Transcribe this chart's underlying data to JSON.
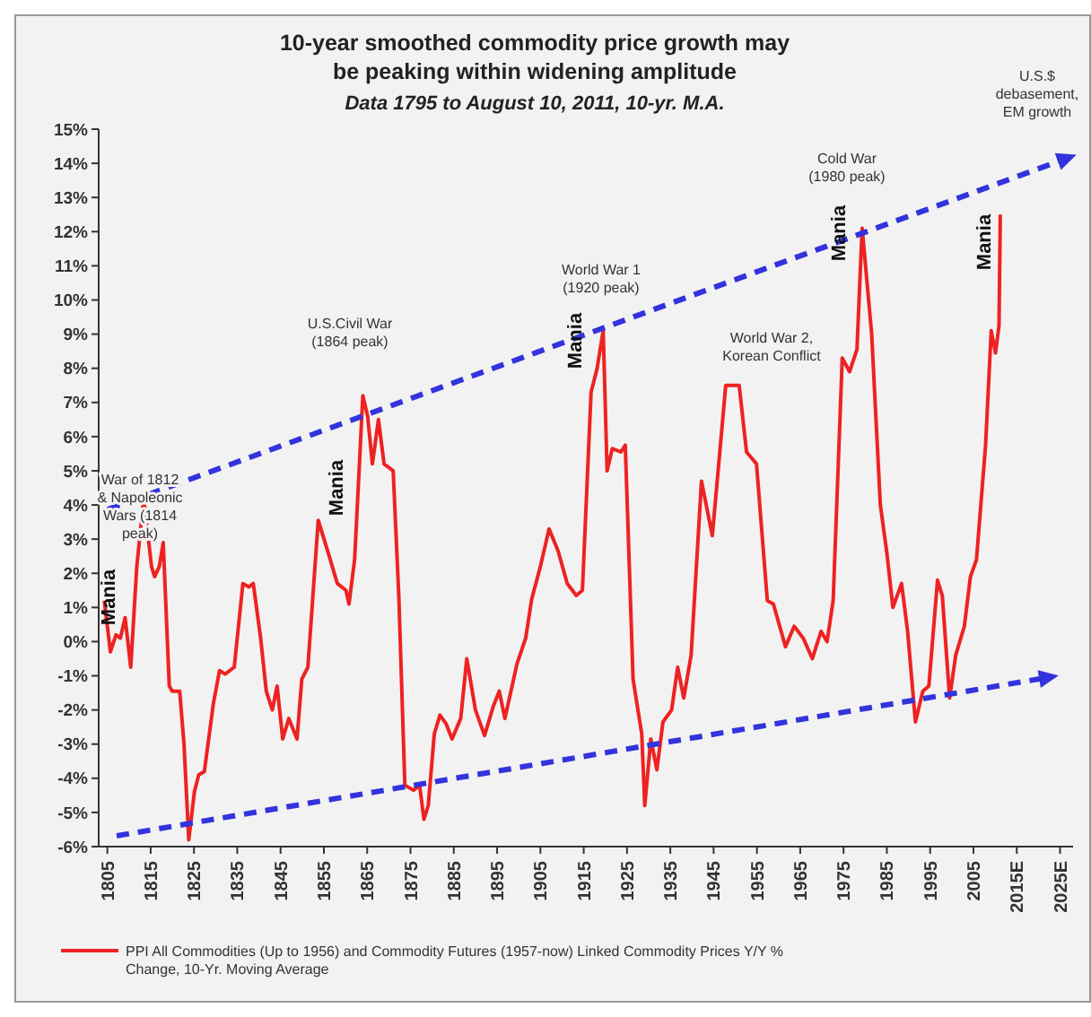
{
  "chart_data": {
    "type": "line",
    "title": "10-year smoothed commodity price growth may be peaking within widening amplitude",
    "subtitle": "Data 1795 to August 10, 2011, 10-yr. M.A.",
    "xlim": [
      1803,
      2028
    ],
    "ylim": [
      -6,
      15
    ],
    "xticks": [
      1805,
      1815,
      1825,
      1835,
      1845,
      1855,
      1865,
      1875,
      1885,
      1895,
      1905,
      1915,
      1925,
      1935,
      1945,
      1955,
      1965,
      1975,
      1985,
      1995,
      2005,
      {
        "value": 2015,
        "label": "2015E"
      },
      {
        "value": 2025,
        "label": "2025E"
      }
    ],
    "yticks": [
      {
        "value": -6,
        "label": "-6%"
      },
      {
        "value": -5,
        "label": "-5%"
      },
      {
        "value": -4,
        "label": "-4%"
      },
      {
        "value": -3,
        "label": "-3%"
      },
      {
        "value": -2,
        "label": "-2%"
      },
      {
        "value": -1,
        "label": "-1%"
      },
      {
        "value": 0,
        "label": "0%"
      },
      {
        "value": 1,
        "label": "1%"
      },
      {
        "value": 2,
        "label": "2%"
      },
      {
        "value": 3,
        "label": "3%"
      },
      {
        "value": 4,
        "label": "4%"
      },
      {
        "value": 5,
        "label": "5%"
      },
      {
        "value": 6,
        "label": "6%"
      },
      {
        "value": 7,
        "label": "7%"
      },
      {
        "value": 8,
        "label": "8%"
      },
      {
        "value": 9,
        "label": "9%"
      },
      {
        "value": 10,
        "label": "10%"
      },
      {
        "value": 11,
        "label": "11%"
      },
      {
        "value": 12,
        "label": "12%"
      },
      {
        "value": 13,
        "label": "13%"
      },
      {
        "value": 14,
        "label": "14%"
      },
      {
        "value": 15,
        "label": "15%"
      }
    ],
    "grid": false,
    "legend": "bottom",
    "marker": "none",
    "series": [
      {
        "name": "PPI All Commodities (Up to 1956) and Commodity Futures (1957-now) Linked Commodity Prices Y/Y % Change, 10-Yr. Moving Average",
        "color": "#ee2222",
        "line_style": "solid",
        "x": [
          1804.3,
          1805.7,
          1807,
          1808,
          1809.1,
          1810.4,
          1811.8,
          1813.4,
          1815.2,
          1815.9,
          1817,
          1817.9,
          1819.3,
          1820,
          1821.7,
          1822.7,
          1823.8,
          1825.1,
          1826.1,
          1827.4,
          1829.5,
          1830.9,
          1832.2,
          1834.3,
          1836.3,
          1837.7,
          1838.7,
          1840.4,
          1841.7,
          1843.1,
          1844.2,
          1845.5,
          1846.9,
          1848.8,
          1849.9,
          1851.3,
          1853.7,
          1856,
          1858.1,
          1860.1,
          1860.8,
          1862.1,
          1864,
          1865.1,
          1866.2,
          1867.6,
          1868.9,
          1871,
          1872.3,
          1873.7,
          1875.7,
          1877.1,
          1878.1,
          1879.1,
          1880.5,
          1881.8,
          1883.2,
          1884.6,
          1886.6,
          1888,
          1890,
          1892.1,
          1894.1,
          1895.5,
          1896.8,
          1899.6,
          1901.6,
          1903,
          1905,
          1907,
          1909.1,
          1911.2,
          1913.3,
          1914.7,
          1916.7,
          1918.1,
          1919.5,
          1920.4,
          1921.6,
          1923.6,
          1924.6,
          1926.4,
          1928.4,
          1929.1,
          1930.5,
          1931.9,
          1933.3,
          1935.3,
          1936.7,
          1938.1,
          1939.8,
          1942.2,
          1944.7,
          1947.8,
          1949.1,
          1950.9,
          1952.6,
          1954.9,
          1957.4,
          1958.8,
          1961.6,
          1963.6,
          1965.7,
          1967.8,
          1969.8,
          1971.2,
          1972.6,
          1974.7,
          1976.4,
          1978.1,
          1979.3,
          1981.5,
          1983.5,
          1985,
          1986.4,
          1988.4,
          1989.8,
          1991.6,
          1993.3,
          1994.7,
          1996.7,
          1997.8,
          1999.5,
          2000.9,
          2002.9,
          2004.3,
          2005.7,
          2007.8,
          2009.1,
          2010.1,
          2010.9,
          2011.2
        ],
        "values": [
          1.2,
          -0.3,
          0.2,
          0.1,
          0.7,
          -0.75,
          2.2,
          4.2,
          2.2,
          1.9,
          2.2,
          2.9,
          -1.3,
          -1.45,
          -1.45,
          -3,
          -5.8,
          -4.4,
          -3.9,
          -3.8,
          -1.8,
          -0.85,
          -0.95,
          -0.75,
          1.7,
          1.6,
          1.7,
          0.1,
          -1.45,
          -2,
          -1.3,
          -2.85,
          -2.25,
          -2.85,
          -1.1,
          -0.75,
          3.55,
          2.6,
          1.7,
          1.5,
          1.1,
          2.4,
          7.2,
          6.6,
          5.2,
          6.5,
          5.2,
          5,
          1.35,
          -4.2,
          -4.35,
          -4.2,
          -5.2,
          -4.8,
          -2.7,
          -2.15,
          -2.4,
          -2.85,
          -2.25,
          -0.5,
          -2,
          -2.75,
          -1.9,
          -1.45,
          -2.25,
          -0.65,
          0.1,
          1.25,
          2.2,
          3.3,
          2.65,
          1.7,
          1.35,
          1.5,
          7.3,
          8,
          9.1,
          5,
          5.65,
          5.55,
          5.75,
          -1.1,
          -2.7,
          -4.8,
          -2.85,
          -3.75,
          -2.35,
          -2,
          -0.75,
          -1.65,
          -0.4,
          4.7,
          3.1,
          7.5,
          7.5,
          7.5,
          5.55,
          5.2,
          1.2,
          1.1,
          -0.15,
          0.45,
          0.1,
          -0.5,
          0.3,
          0,
          1.2,
          8.3,
          7.9,
          8.55,
          12.1,
          9,
          4,
          2.6,
          1,
          1.7,
          0.3,
          -2.35,
          -1.45,
          -1.3,
          1.8,
          1.35,
          -1.65,
          -0.4,
          0.45,
          1.9,
          2.4,
          5.75,
          9.1,
          8.45,
          9.25,
          12.5
        ]
      }
    ],
    "annotations": [
      "War of 1812\n& Napoleonic\nWars (1814\npeak)",
      "U.S.Civil War\n(1864 peak)",
      "World War 1\n(1920 peak)",
      "World War 2,\nKorean Conflict",
      "Cold War\n(1980 peak)",
      "U.S.$\ndebasement,\nEM growth",
      "Mania",
      "Mania",
      "Mania",
      "Mania",
      "Mania"
    ]
  }
}
